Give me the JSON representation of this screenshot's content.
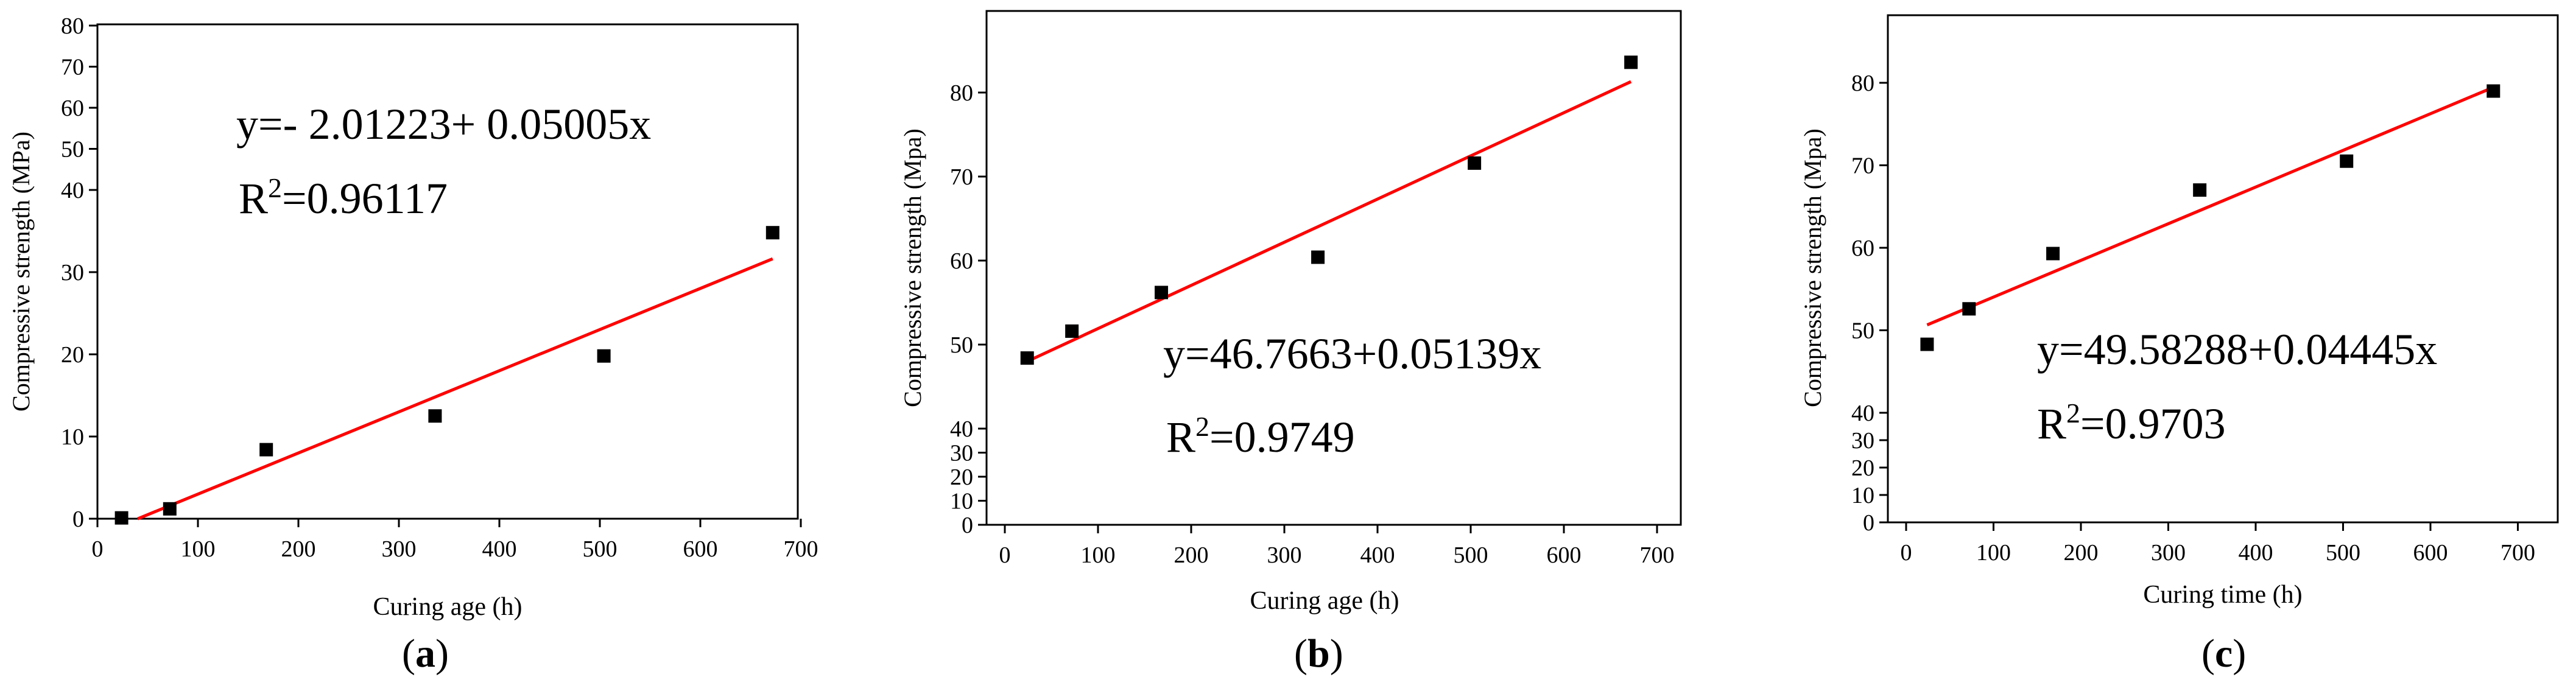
{
  "chart_data": [
    {
      "type": "scatter",
      "panel_label": "(a)",
      "xlabel": "Curing age (h)",
      "ylabel": "Compressive strength (MPa)",
      "x_ticks": [
        "0",
        "100",
        "200",
        "300",
        "400",
        "500",
        "600",
        "700"
      ],
      "y_ticks": [
        "0",
        "10",
        "20",
        "30",
        "40",
        "50",
        "60",
        "70",
        "80"
      ],
      "xlim": [
        0,
        700
      ],
      "ylim": [
        0,
        80
      ],
      "y_axis_break": "compressed above 40",
      "points": [
        {
          "x": 24,
          "y": 0.1
        },
        {
          "x": 72,
          "y": 1.2
        },
        {
          "x": 168,
          "y": 8.4
        },
        {
          "x": 336,
          "y": 12.5
        },
        {
          "x": 504,
          "y": 19.8
        },
        {
          "x": 672,
          "y": 34.8
        }
      ],
      "fit": {
        "intercept": -2.01223,
        "slope": 0.05005,
        "x_range": [
          40,
          672
        ]
      },
      "equation": "y=-  2.01223+  0.05005x",
      "r2_prefix": "R",
      "r2_sup": "2",
      "r2_value": "=0.96117",
      "point_color": "#000000",
      "fit_color": "#ff0000"
    },
    {
      "type": "scatter",
      "panel_label": "(b)",
      "xlabel": "Curing age (h)",
      "ylabel": "Compressive strength (Mpa)",
      "x_ticks": [
        "0",
        "100",
        "200",
        "300",
        "400",
        "500",
        "600",
        "700"
      ],
      "y_ticks": [
        "0",
        "10",
        "20",
        "30",
        "40",
        "50",
        "60",
        "70",
        "80"
      ],
      "xlim": [
        -30,
        700
      ],
      "ylim": [
        0,
        85
      ],
      "y_axis_break": "compressed below 40",
      "points": [
        {
          "x": 24,
          "y": 48.4
        },
        {
          "x": 72,
          "y": 51.6
        },
        {
          "x": 168,
          "y": 56.2
        },
        {
          "x": 336,
          "y": 60.4
        },
        {
          "x": 504,
          "y": 71.6
        },
        {
          "x": 672,
          "y": 83.6
        }
      ],
      "fit": {
        "intercept": 46.7663,
        "slope": 0.05139,
        "x_range": [
          24,
          672
        ]
      },
      "equation": "y=46.7663+0.05139x",
      "r2_prefix": "R",
      "r2_sup": "2",
      "r2_value": "=0.9749",
      "point_color": "#000000",
      "fit_color": "#ff0000"
    },
    {
      "type": "scatter",
      "panel_label": "(c)",
      "xlabel": "Curing time (h)",
      "ylabel": "Compressive strength (Mpa)",
      "x_ticks": [
        "0",
        "100",
        "200",
        "300",
        "400",
        "500",
        "600",
        "700"
      ],
      "y_ticks": [
        "0",
        "10",
        "20",
        "30",
        "40",
        "50",
        "60",
        "70",
        "80"
      ],
      "xlim": [
        -30,
        750
      ],
      "ylim": [
        0,
        85
      ],
      "y_axis_break": "compressed below 40",
      "points": [
        {
          "x": 24,
          "y": 48.3
        },
        {
          "x": 72,
          "y": 52.6
        },
        {
          "x": 168,
          "y": 59.3
        },
        {
          "x": 336,
          "y": 67.0
        },
        {
          "x": 504,
          "y": 70.5
        },
        {
          "x": 672,
          "y": 79.0
        }
      ],
      "fit": {
        "intercept": 49.58288,
        "slope": 0.04445,
        "x_range": [
          24,
          672
        ]
      },
      "equation": "y=49.58288+0.04445x",
      "r2_prefix": "R",
      "r2_sup": "2",
      "r2_value": "=0.9703",
      "point_color": "#000000",
      "fit_color": "#ff0000"
    }
  ]
}
